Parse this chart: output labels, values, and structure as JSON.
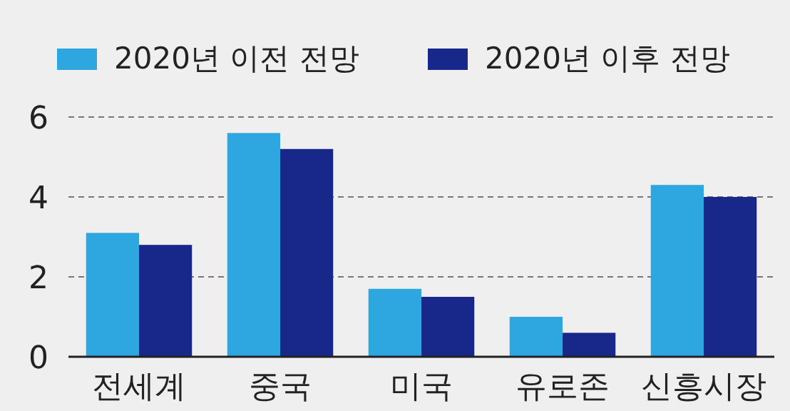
{
  "chart_data": {
    "type": "bar",
    "categories": [
      "전세계",
      "중국",
      "미국",
      "유로존",
      "신흥시장"
    ],
    "series": [
      {
        "name": "2020년 이전 전망",
        "color": "#2ea6e0",
        "values": [
          3.1,
          5.6,
          1.7,
          1.0,
          4.3
        ]
      },
      {
        "name": "2020년 이후 전망",
        "color": "#18288a",
        "values": [
          2.8,
          5.2,
          1.5,
          0.6,
          4.0
        ]
      }
    ],
    "ylim": [
      0,
      6
    ],
    "yticks": [
      0,
      2,
      4,
      6
    ],
    "grid": "y",
    "legend": "top"
  }
}
